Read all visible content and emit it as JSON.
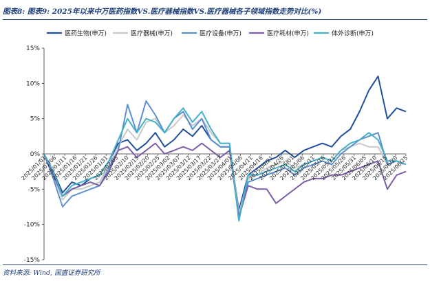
{
  "header": {
    "title": "图表8:  图表9:  2025年以来中万医药指数VS.医疗器械指数VS.医疗器械各子领域指数走势对比(%)"
  },
  "footer": {
    "source": "资料来源:  Wind,  国盛证券研究所"
  },
  "colors": {
    "accent": "#1f3f7a",
    "series": [
      "#1f4e9c",
      "#c8c8c8",
      "#5b8fd1",
      "#7b5ea7",
      "#45b0c8"
    ]
  },
  "chart_data": {
    "type": "line",
    "title": "",
    "xlabel": "",
    "ylabel": "",
    "ylim": [
      -15,
      15
    ],
    "yticks": [
      "15%",
      "10%",
      "5%",
      "0%",
      "-5%",
      "-10%",
      "-15%"
    ],
    "ytick_values": [
      15,
      10,
      5,
      0,
      -5,
      -10,
      -15
    ],
    "legend_position": "top",
    "x": [
      "2025/01/01",
      "2025/01/06",
      "2025/01/09",
      "2025/01/14",
      "2025/01/17",
      "2025/01/22",
      "2025/01/27",
      "2025/02/06",
      "2025/02/11",
      "2025/02/14",
      "2025/02/19",
      "2025/02/24",
      "2025/02/27",
      "2025/03/04",
      "2025/03/07",
      "2025/03/12",
      "2025/03/17",
      "2025/03/20",
      "2025/03/25",
      "2025/03/28",
      "2025/04/02",
      "2025/04/07",
      "2025/04/10",
      "2025/04/15",
      "2025/04/18",
      "2025/04/23",
      "2025/04/28",
      "2025/05/06",
      "2025/05/09",
      "2025/05/14",
      "2025/05/19",
      "2025/05/22",
      "2025/05/27",
      "2025/05/30",
      "2025/06/05",
      "2025/06/10",
      "2025/06/13",
      "2025/06/18",
      "2025/06/23",
      "2025/06/26"
    ],
    "xticks": [
      "2025/01/01",
      "2025/01/06",
      "2025/01/11",
      "2025/01/16",
      "2025/01/21",
      "2025/01/26",
      "2025/01/31",
      "2025/02/05",
      "2025/02/10",
      "2025/02/15",
      "2025/02/20",
      "2025/02/25",
      "2025/03/02",
      "2025/03/07",
      "2025/03/12",
      "2025/03/17",
      "2025/03/22",
      "2025/03/27",
      "2025/04/01",
      "2025/04/06",
      "2025/04/11",
      "2025/04/16",
      "2025/04/21",
      "2025/04/26",
      "2025/05/01",
      "2025/05/06",
      "2025/05/11",
      "2025/05/16",
      "2025/05/21",
      "2025/05/26",
      "2025/05/31",
      "2025/06/05",
      "2025/06/10",
      "2025/06/15",
      "2025/06/20",
      "2025/06/25"
    ],
    "series": [
      {
        "name": "医药生物(申万)",
        "values": [
          0,
          -2.5,
          -5.5,
          -4.0,
          -4.5,
          -3.5,
          -3.0,
          -1.0,
          1.5,
          2.0,
          0.5,
          1.5,
          3.0,
          1.0,
          2.0,
          3.5,
          2.5,
          4.0,
          2.0,
          1.0,
          1.0,
          -8.0,
          -3.0,
          -2.0,
          -1.0,
          -0.5,
          0.5,
          -0.5,
          0.5,
          1.0,
          1.5,
          1.0,
          2.5,
          3.5,
          6.0,
          9.0,
          11.0,
          5.0,
          6.5,
          6.0
        ]
      },
      {
        "name": "医疗器械(申万)",
        "values": [
          0,
          -3.0,
          -6.5,
          -5.0,
          -5.0,
          -4.5,
          -4.0,
          -1.5,
          1.0,
          3.5,
          2.0,
          4.5,
          5.0,
          3.0,
          4.0,
          5.5,
          4.0,
          5.0,
          3.0,
          1.5,
          1.5,
          -8.5,
          -3.5,
          -3.0,
          -2.0,
          -1.5,
          -1.0,
          -2.0,
          -1.5,
          -1.0,
          -0.5,
          -1.0,
          0.5,
          1.0,
          1.5,
          1.0,
          1.0,
          -1.5,
          -1.0,
          -1.5
        ]
      },
      {
        "name": "医疗设备(申万)",
        "values": [
          0,
          -3.5,
          -7.5,
          -6.0,
          -5.5,
          -5.0,
          -4.5,
          -2.0,
          0.5,
          7.0,
          3.0,
          7.5,
          5.5,
          3.0,
          5.0,
          6.0,
          3.5,
          5.0,
          2.0,
          1.0,
          1.0,
          -9.0,
          -4.0,
          -3.5,
          -3.0,
          -2.5,
          -2.0,
          -3.0,
          -2.0,
          -1.5,
          -1.0,
          -1.5,
          0.0,
          1.0,
          2.0,
          2.5,
          3.0,
          -1.5,
          -1.0,
          -1.5
        ]
      },
      {
        "name": "医疗耗材(申万)",
        "values": [
          0,
          -3.0,
          -6.0,
          -5.0,
          -4.5,
          -4.0,
          -4.5,
          -2.5,
          0.5,
          1.0,
          -0.5,
          0.5,
          1.5,
          0.0,
          0.5,
          1.0,
          0.5,
          1.5,
          0.5,
          -0.5,
          0.5,
          -9.0,
          -4.5,
          -5.0,
          -5.0,
          -7.0,
          -6.0,
          -5.0,
          -4.0,
          -3.5,
          -3.5,
          -3.0,
          -3.0,
          -2.5,
          -2.0,
          -1.5,
          -1.0,
          -5.0,
          -3.0,
          -2.5
        ]
      },
      {
        "name": "体外诊断(申万)",
        "values": [
          0,
          -2.5,
          -6.0,
          -4.5,
          -4.0,
          -3.5,
          -3.0,
          -1.0,
          2.0,
          5.0,
          3.0,
          5.0,
          4.5,
          3.0,
          5.0,
          6.5,
          4.5,
          6.0,
          3.5,
          1.5,
          1.5,
          -9.5,
          -3.0,
          -3.0,
          -2.5,
          -2.0,
          -1.5,
          -2.5,
          -1.5,
          -1.0,
          -0.5,
          -1.0,
          0.5,
          1.5,
          2.0,
          3.0,
          2.0,
          -1.0,
          -1.0,
          -1.5
        ]
      }
    ]
  }
}
